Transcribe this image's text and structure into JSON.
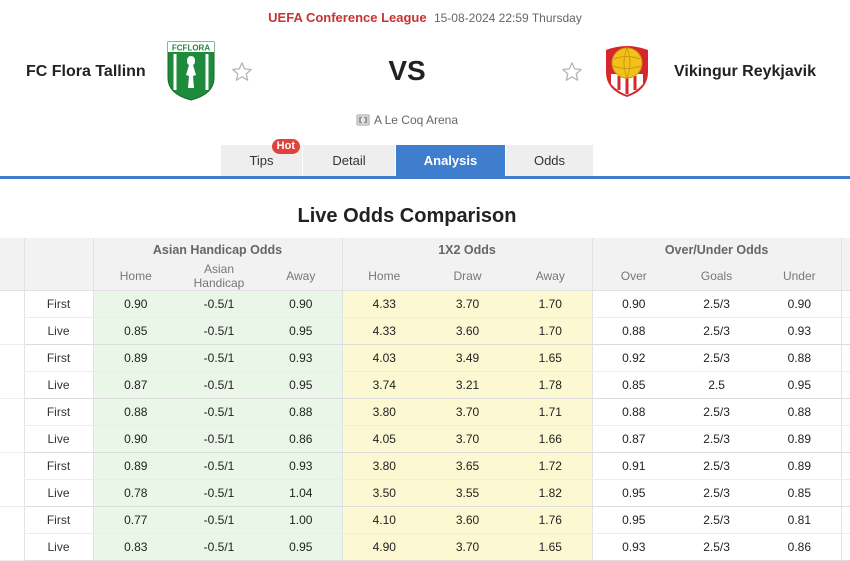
{
  "header": {
    "league": "UEFA Conference League",
    "datetime": "15-08-2024 22:59 Thursday"
  },
  "match": {
    "home_team": "FC Flora Tallinn",
    "away_team": "Vikingur Reykjavik",
    "vs_label": "VS",
    "home_logo_text": "FCFLORA",
    "venue": "A Le Coq Arena"
  },
  "tabs": [
    {
      "label": "Tips",
      "badge": "Hot"
    },
    {
      "label": "Detail"
    },
    {
      "label": "Analysis",
      "active": true
    },
    {
      "label": "Odds"
    }
  ],
  "section_title": "Live Odds Comparison",
  "table": {
    "group_headers": [
      "Asian Handicap Odds",
      "1X2 Odds",
      "Over/Under Odds"
    ],
    "sub_headers": [
      "Home",
      "Asian Handicap",
      "Away",
      "Home",
      "Draw",
      "Away",
      "Over",
      "Goals",
      "Under"
    ],
    "rows": [
      {
        "label": "First",
        "cells": [
          "0.90",
          "-0.5/1",
          "0.90",
          "4.33",
          "3.70",
          "1.70",
          "0.90",
          "2.5/3",
          "0.90"
        ]
      },
      {
        "label": "Live",
        "cells": [
          "0.85",
          "-0.5/1",
          "0.95",
          "4.33",
          "3.60",
          "1.70",
          "0.88",
          "2.5/3",
          "0.93"
        ]
      },
      {
        "label": "First",
        "cells": [
          "0.89",
          "-0.5/1",
          "0.93",
          "4.03",
          "3.49",
          "1.65",
          "0.92",
          "2.5/3",
          "0.88"
        ]
      },
      {
        "label": "Live",
        "cells": [
          "0.87",
          "-0.5/1",
          "0.95",
          "3.74",
          "3.21",
          "1.78",
          "0.85",
          "2.5",
          "0.95"
        ]
      },
      {
        "label": "First",
        "cells": [
          "0.88",
          "-0.5/1",
          "0.88",
          "3.80",
          "3.70",
          "1.71",
          "0.88",
          "2.5/3",
          "0.88"
        ]
      },
      {
        "label": "Live",
        "cells": [
          "0.90",
          "-0.5/1",
          "0.86",
          "4.05",
          "3.70",
          "1.66",
          "0.87",
          "2.5/3",
          "0.89"
        ]
      },
      {
        "label": "First",
        "cells": [
          "0.89",
          "-0.5/1",
          "0.93",
          "3.80",
          "3.65",
          "1.72",
          "0.91",
          "2.5/3",
          "0.89"
        ]
      },
      {
        "label": "Live",
        "cells": [
          "0.78",
          "-0.5/1",
          "1.04",
          "3.50",
          "3.55",
          "1.82",
          "0.95",
          "2.5/3",
          "0.85"
        ]
      },
      {
        "label": "First",
        "cells": [
          "0.77",
          "-0.5/1",
          "1.00",
          "4.10",
          "3.60",
          "1.76",
          "0.95",
          "2.5/3",
          "0.81"
        ]
      },
      {
        "label": "Live",
        "cells": [
          "0.83",
          "-0.5/1",
          "0.95",
          "4.90",
          "3.70",
          "1.65",
          "0.93",
          "2.5/3",
          "0.86"
        ]
      }
    ]
  },
  "colors": {
    "accent_blue": "#3f7ecf",
    "league_red": "#c83333",
    "hot_badge": "#e0433b",
    "asian_bg": "#eaf6e8",
    "x12_bg": "#fbf8d2",
    "flora_green": "#1e8a3c",
    "vikingur_yellow": "#f2c21b",
    "vikingur_red": "#d8262e"
  },
  "icons": [
    "star-icon",
    "stadium-icon"
  ]
}
